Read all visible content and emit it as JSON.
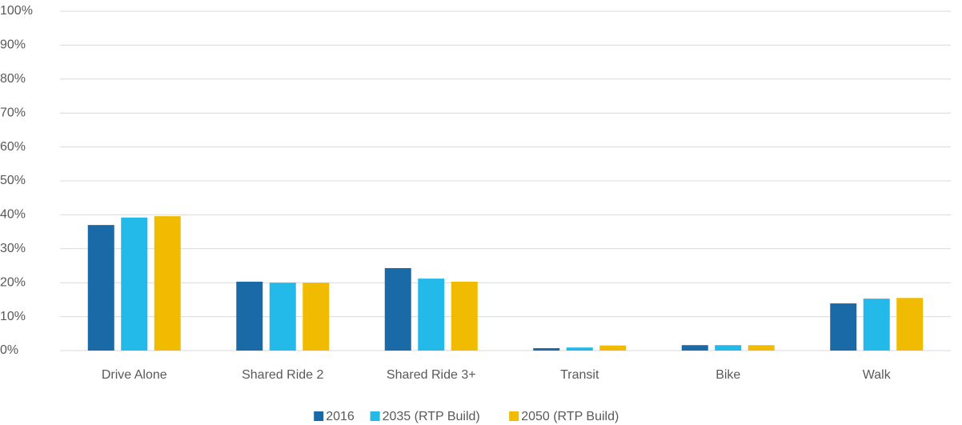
{
  "chart_data": {
    "type": "bar",
    "categories": [
      "Drive Alone",
      "Shared Ride 2",
      "Shared Ride 3+",
      "Transit",
      "Bike",
      "Walk"
    ],
    "series": [
      {
        "name": "2016",
        "color": "#1b6aa8",
        "values": [
          37,
          20.3,
          24.3,
          0.7,
          1.6,
          13.9
        ]
      },
      {
        "name": "2035 (RTP Build)",
        "color": "#23b9e8",
        "values": [
          39.2,
          20,
          21.2,
          0.9,
          1.6,
          15.3
        ]
      },
      {
        "name": "2050 (RTP Build)",
        "color": "#f0bb00",
        "values": [
          39.6,
          20,
          20.3,
          1.5,
          1.6,
          15.5
        ]
      }
    ],
    "ylim": [
      0,
      100
    ],
    "yticks": [
      {
        "value": 0,
        "label": "0%"
      },
      {
        "value": 10,
        "label": "10%"
      },
      {
        "value": 20,
        "label": "20%"
      },
      {
        "value": 30,
        "label": "30%"
      },
      {
        "value": 40,
        "label": "40%"
      },
      {
        "value": 50,
        "label": "50%"
      },
      {
        "value": 60,
        "label": "60%"
      },
      {
        "value": 70,
        "label": "70%"
      },
      {
        "value": 80,
        "label": "80%"
      },
      {
        "value": 90,
        "label": "90%"
      },
      {
        "value": 100,
        "label": "100%"
      }
    ],
    "grid": true,
    "legend": "bottom"
  }
}
